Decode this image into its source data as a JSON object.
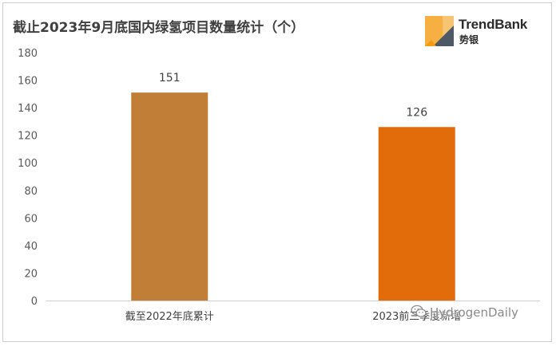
{
  "header": {
    "title": "截止2023年9月底国内绿氢项目数量统计（个）"
  },
  "brand": {
    "name": "TrendBank",
    "sub": "势银",
    "icon": "trendbank-logo-icon",
    "colors": [
      "#f5b041",
      "#f8c471",
      "#5d6d7e"
    ]
  },
  "watermark": {
    "text": "HydrogenDaily",
    "icon": "wechat-icon"
  },
  "chart_data": {
    "type": "bar",
    "categories": [
      "截至2022年底累计",
      "2023前三季度新增"
    ],
    "values": [
      151,
      126
    ],
    "data_labels": [
      "151",
      "126"
    ],
    "title": "截止2023年9月底国内绿氢项目数量统计（个）",
    "xlabel": "",
    "ylabel": "",
    "ylim": [
      0,
      180
    ],
    "yticks": [
      0,
      20,
      40,
      60,
      80,
      100,
      120,
      140,
      160,
      180
    ],
    "ytick_labels": [
      "0",
      "20",
      "40",
      "60",
      "80",
      "100",
      "120",
      "140",
      "160",
      "180"
    ],
    "grid": false,
    "legend": "none",
    "colors": [
      "#c07e37",
      "#e36c0a"
    ]
  }
}
